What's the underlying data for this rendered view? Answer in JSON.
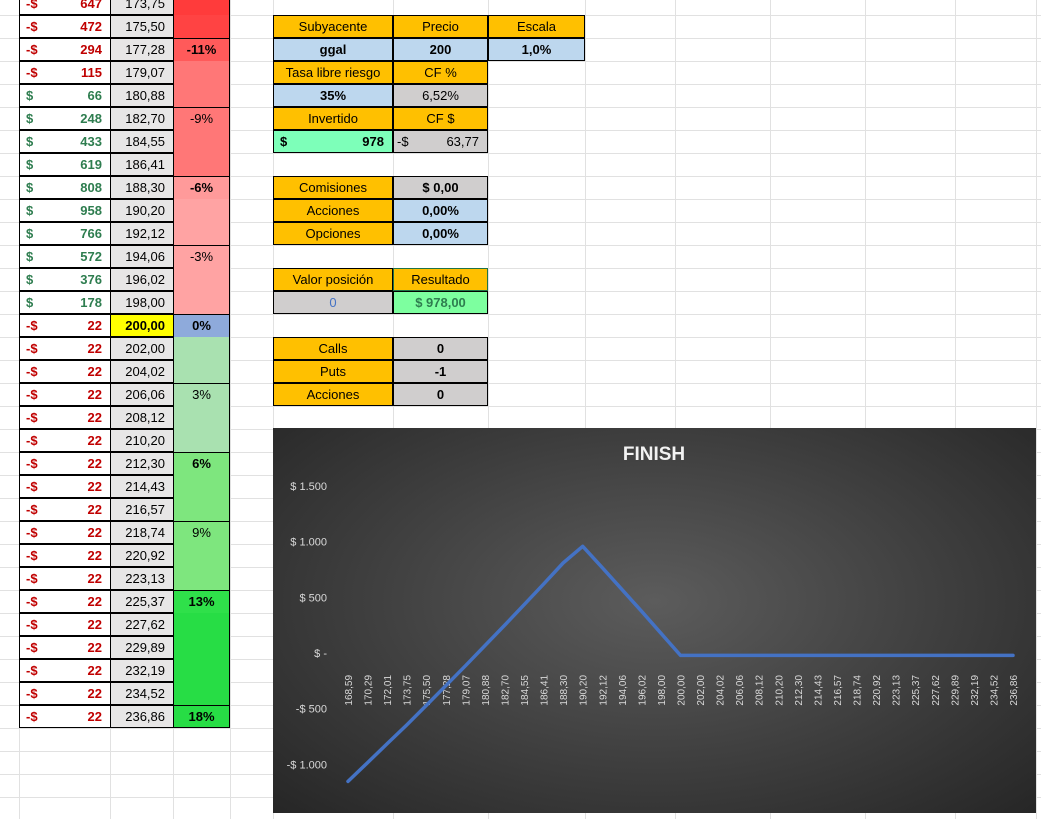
{
  "left_table": {
    "rows": [
      {
        "sign": "-$",
        "amount": "647",
        "price": "173,75",
        "pct": "",
        "color": "#ff3b3b"
      },
      {
        "sign": "-$",
        "amount": "472",
        "price": "175,50",
        "pct": "",
        "color": "#ff4343"
      },
      {
        "sign": "-$",
        "amount": "294",
        "price": "177,28",
        "pct": "-11%",
        "color": "#ff5a5a"
      },
      {
        "sign": "-$",
        "amount": "115",
        "price": "179,07",
        "pct": "",
        "color": "#ff7777"
      },
      {
        "sign": "$",
        "amount": "66",
        "price": "180,88",
        "pct": "",
        "color": "#ff7777"
      },
      {
        "sign": "$",
        "amount": "248",
        "price": "182,70",
        "pct": "-9%",
        "color": "#ff7777"
      },
      {
        "sign": "$",
        "amount": "433",
        "price": "184,55",
        "pct": "",
        "color": "#ff7777"
      },
      {
        "sign": "$",
        "amount": "619",
        "price": "186,41",
        "pct": "",
        "color": "#ff7777"
      },
      {
        "sign": "$",
        "amount": "808",
        "price": "188,30",
        "pct": "-6%",
        "color": "#ff9a9a"
      },
      {
        "sign": "$",
        "amount": "958",
        "price": "190,20",
        "pct": "",
        "color": "#ffa3a3"
      },
      {
        "sign": "$",
        "amount": "766",
        "price": "192,12",
        "pct": "",
        "color": "#ffa3a3"
      },
      {
        "sign": "$",
        "amount": "572",
        "price": "194,06",
        "pct": "-3%",
        "color": "#ffa3a3"
      },
      {
        "sign": "$",
        "amount": "376",
        "price": "196,02",
        "pct": "",
        "color": "#ffa3a3"
      },
      {
        "sign": "$",
        "amount": "178",
        "price": "198,00",
        "pct": "",
        "color": "#ffa3a3"
      },
      {
        "sign": "-$",
        "amount": "22",
        "price": "200,00",
        "pct": "0%",
        "color": "#8eaadb",
        "highlight": true
      },
      {
        "sign": "-$",
        "amount": "22",
        "price": "202,00",
        "pct": "",
        "color": "#a9e1b0"
      },
      {
        "sign": "-$",
        "amount": "22",
        "price": "204,02",
        "pct": "",
        "color": "#a9e1b0"
      },
      {
        "sign": "-$",
        "amount": "22",
        "price": "206,06",
        "pct": "3%",
        "color": "#a9e1b0"
      },
      {
        "sign": "-$",
        "amount": "22",
        "price": "208,12",
        "pct": "",
        "color": "#a9e1b0"
      },
      {
        "sign": "-$",
        "amount": "22",
        "price": "210,20",
        "pct": "",
        "color": "#a9e1b0"
      },
      {
        "sign": "-$",
        "amount": "22",
        "price": "212,30",
        "pct": "6%",
        "color": "#7ee67e"
      },
      {
        "sign": "-$",
        "amount": "22",
        "price": "214,43",
        "pct": "",
        "color": "#7ee67e"
      },
      {
        "sign": "-$",
        "amount": "22",
        "price": "216,57",
        "pct": "",
        "color": "#7ee67e"
      },
      {
        "sign": "-$",
        "amount": "22",
        "price": "218,74",
        "pct": "9%",
        "color": "#7ee67e"
      },
      {
        "sign": "-$",
        "amount": "22",
        "price": "220,92",
        "pct": "",
        "color": "#7ee67e"
      },
      {
        "sign": "-$",
        "amount": "22",
        "price": "223,13",
        "pct": "",
        "color": "#7ee67e"
      },
      {
        "sign": "-$",
        "amount": "22",
        "price": "225,37",
        "pct": "13%",
        "color": "#2fe04a"
      },
      {
        "sign": "-$",
        "amount": "22",
        "price": "227,62",
        "pct": "",
        "color": "#27dd45"
      },
      {
        "sign": "-$",
        "amount": "22",
        "price": "229,89",
        "pct": "",
        "color": "#27dd45"
      },
      {
        "sign": "-$",
        "amount": "22",
        "price": "232,19",
        "pct": "",
        "color": "#27dd45"
      },
      {
        "sign": "-$",
        "amount": "22",
        "price": "234,52",
        "pct": "",
        "color": "#27dd45"
      },
      {
        "sign": "-$",
        "amount": "22",
        "price": "236,86",
        "pct": "18%",
        "color": "#27dd45"
      }
    ]
  },
  "params": {
    "subyacente_label": "Subyacente",
    "precio_label": "Precio",
    "escala_label": "Escala",
    "subyacente": "ggal",
    "precio": "200",
    "escala": "1,0%",
    "tasa_label": "Tasa libre riesgo",
    "cf_pct_label": "CF %",
    "tasa": "35%",
    "cf_pct": "6,52%",
    "invertido_label": "Invertido",
    "cf_usd_label": "CF $",
    "invertido_sign": "$",
    "invertido": "978",
    "cf_usd_sign": "-$",
    "cf_usd": "63,77"
  },
  "costs": {
    "comisiones_label": "Comisiones",
    "comisiones": "$ 0,00",
    "acciones_label": "Acciones",
    "acciones": "0,00%",
    "opciones_label": "Opciones",
    "opciones": "0,00%"
  },
  "position": {
    "valor_label": "Valor posición",
    "resultado_label": "Resultado",
    "valor": "0",
    "resultado": "$ 978,00"
  },
  "counts": {
    "calls_label": "Calls",
    "calls": "0",
    "puts_label": "Puts",
    "puts": "-1",
    "acciones_label": "Acciones",
    "acciones": "0"
  },
  "colors": {
    "line": "#4472c4",
    "header": "#ffc000",
    "input": "#bdd7ee",
    "calc": "#d0cece",
    "positive": "#2e7d4f",
    "negative": "#c00000"
  },
  "chart_data": {
    "type": "line",
    "title": "FINISH",
    "categories": [
      "168,59",
      "170,29",
      "172,01",
      "173,75",
      "175,50",
      "177,28",
      "179,07",
      "180,88",
      "182,70",
      "184,55",
      "186,41",
      "188,30",
      "190,20",
      "192,12",
      "194,06",
      "196,02",
      "198,00",
      "200,00",
      "202,00",
      "204,02",
      "206,06",
      "208,12",
      "210,20",
      "212,30",
      "214,43",
      "216,57",
      "218,74",
      "220,92",
      "223,13",
      "225,37",
      "227,62",
      "229,89",
      "232,19",
      "234,52",
      "236,86"
    ],
    "series": [
      {
        "values": [
          -1154,
          -985,
          -816,
          -647,
          -472,
          -294,
          -115,
          66,
          248,
          433,
          619,
          808,
          958,
          766,
          572,
          376,
          178,
          -22,
          -22,
          -22,
          -22,
          -22,
          -22,
          -22,
          -22,
          -22,
          -22,
          -22,
          -22,
          -22,
          -22,
          -22,
          -22,
          -22,
          -22
        ]
      }
    ],
    "yticks": [
      1500,
      1000,
      500,
      0,
      -500,
      -1000
    ],
    "ytick_labels": [
      "$ 1.500",
      "$ 1.000",
      "$ 500",
      "$ -",
      "-$ 500",
      "-$ 1.000"
    ],
    "ylim": [
      -1150,
      1500
    ],
    "grid": false,
    "legend": false
  }
}
